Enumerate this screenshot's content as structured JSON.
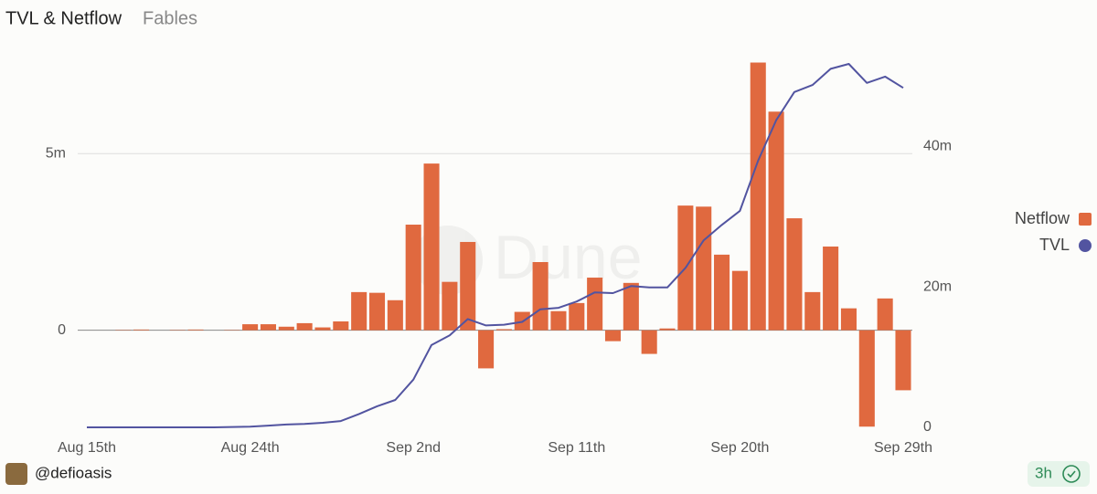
{
  "chart_data": {
    "type": "bar-line",
    "title": "TVL & Netflow",
    "subtitle": "Fables",
    "watermark": "Dune",
    "categories": [
      "Aug 15th",
      null,
      null,
      null,
      null,
      null,
      null,
      null,
      null,
      "Aug 24th",
      null,
      null,
      null,
      null,
      null,
      null,
      null,
      null,
      "Sep 2nd",
      null,
      null,
      null,
      null,
      null,
      null,
      null,
      null,
      "Sep 11th",
      null,
      null,
      null,
      null,
      null,
      null,
      null,
      null,
      "Sep 20th",
      null,
      null,
      null,
      null,
      null,
      null,
      null,
      null,
      "Sep 29th"
    ],
    "series": [
      {
        "name": "Netflow",
        "type": "bar",
        "color": "#e0693f",
        "values": [
          0,
          0,
          10000,
          20000,
          0,
          10000,
          20000,
          0,
          10000,
          170000,
          170000,
          100000,
          200000,
          80000,
          250000,
          1080000,
          1060000,
          850000,
          2990000,
          4720000,
          1370000,
          2500000,
          -1080000,
          30000,
          520000,
          1930000,
          540000,
          770000,
          1490000,
          -310000,
          1340000,
          -670000,
          50000,
          3530000,
          3500000,
          2140000,
          1680000,
          7580000,
          6190000,
          3170000,
          1080000,
          2370000,
          620000,
          -2730000,
          900000,
          -1700000
        ]
      },
      {
        "name": "TVL",
        "type": "line",
        "axis": "y2",
        "color": "#5254a0",
        "values": [
          0,
          0,
          0,
          0,
          0,
          0,
          0,
          0,
          50000,
          100000,
          250000,
          400000,
          500000,
          650000,
          900000,
          1900000,
          3000000,
          3900000,
          6800000,
          11700000,
          13100000,
          15400000,
          14500000,
          14600000,
          15000000,
          16800000,
          17000000,
          17900000,
          19200000,
          19100000,
          20100000,
          19900000,
          19900000,
          22700000,
          26600000,
          28800000,
          30800000,
          37900000,
          43700000,
          47700000,
          48700000,
          51000000,
          51700000,
          49000000,
          49900000,
          48300000
        ]
      }
    ],
    "ylim": [
      -2750000,
      7800000
    ],
    "yticks": [
      0,
      {
        "value": 5000000,
        "label": "5m"
      }
    ],
    "y2lim": [
      0,
      53000000
    ],
    "y2ticks": [
      0,
      {
        "value": 20000000,
        "label": "20m"
      },
      {
        "value": 40000000,
        "label": "40m"
      }
    ],
    "grid": true,
    "legend": "right"
  },
  "footer": {
    "user": "@defioasis",
    "age": "3h"
  }
}
